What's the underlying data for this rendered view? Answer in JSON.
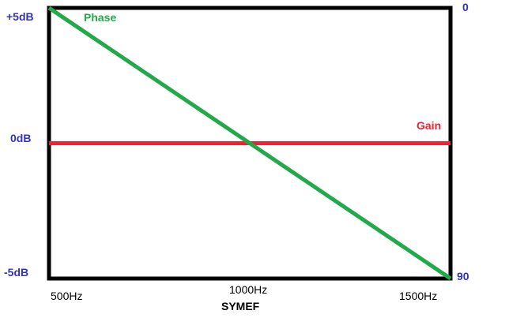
{
  "chart_data": {
    "type": "line",
    "xlabel": "SYMEF",
    "x_ticks": [
      "500Hz",
      "1000Hz",
      "1500Hz"
    ],
    "xlim": [
      500,
      1500
    ],
    "y_left": {
      "ticks": [
        "+5dB",
        "0dB",
        "-5dB"
      ],
      "ylim": [
        -5,
        5
      ],
      "color": "#3333bb"
    },
    "y_right": {
      "ticks": [
        "0",
        "90"
      ],
      "ylim": [
        90,
        0
      ],
      "color": "#3333bb"
    },
    "grid": false,
    "series": [
      {
        "name": "Phase",
        "axis": "right",
        "color": "#22aa4a",
        "x": [
          500,
          1500
        ],
        "y": [
          0,
          90
        ]
      },
      {
        "name": "Gain",
        "axis": "left",
        "color": "#ee2233",
        "x": [
          500,
          1500
        ],
        "y": [
          0,
          0
        ]
      }
    ]
  }
}
